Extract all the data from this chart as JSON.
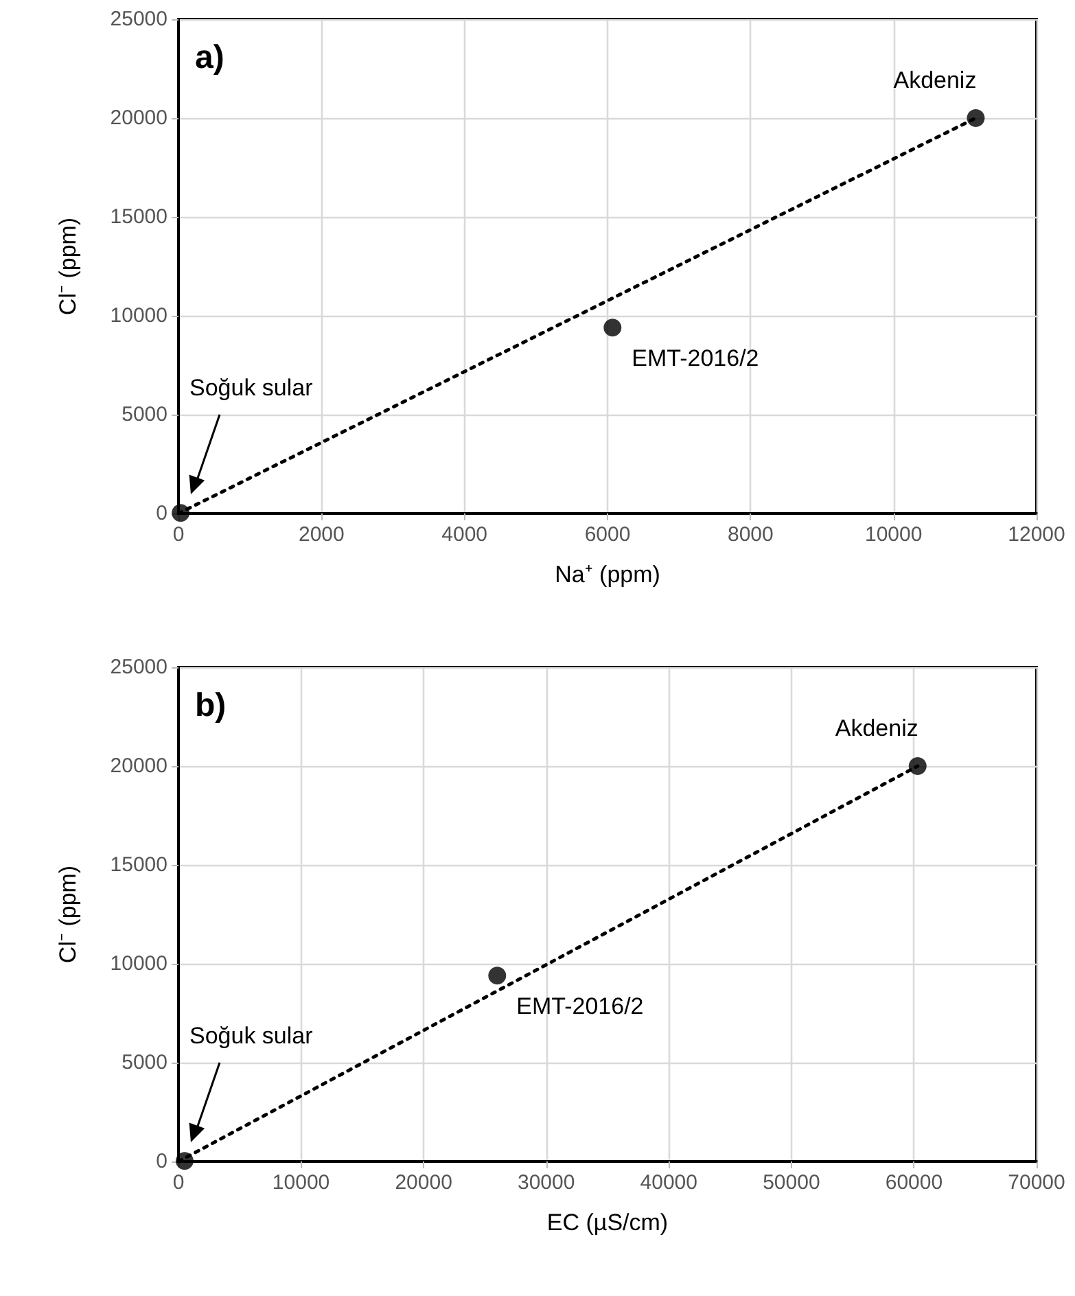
{
  "chart_data": [
    {
      "type": "scatter",
      "xlabel": "Na⁺ (ppm)",
      "ylabel": "Cl⁻ (ppm)",
      "xlim": [
        0,
        12000
      ],
      "xticks": [
        0,
        2000,
        4000,
        6000,
        8000,
        10000,
        12000
      ],
      "ylim": [
        0,
        25000
      ],
      "yticks": [
        0,
        5000,
        10000,
        15000,
        20000,
        25000
      ],
      "grid": true,
      "annotations": [
        "a)",
        {
          "text": "Akdeniz",
          "x": 11150,
          "y": 20000
        },
        {
          "text": "EMT-2016/2",
          "x": 6070,
          "y": 9400
        },
        "Soğuk sular"
      ],
      "series": [
        {
          "color": "#000000",
          "marker": "circle",
          "x": [
            30,
            6070,
            11150
          ],
          "values": [
            30,
            9400,
            20000
          ]
        },
        {
          "type": "line",
          "color": "#000000",
          "marker": "none",
          "line_style": "dotted",
          "x": [
            0,
            11150
          ],
          "values": [
            0,
            20000
          ]
        }
      ]
    },
    {
      "type": "scatter",
      "xlabel": "EC (µS/cm)",
      "ylabel": "Cl⁻ (ppm)",
      "xlim": [
        0,
        70000
      ],
      "xticks": [
        0,
        10000,
        20000,
        30000,
        40000,
        50000,
        60000,
        70000
      ],
      "ylim": [
        0,
        25000
      ],
      "yticks": [
        0,
        5000,
        10000,
        15000,
        20000,
        25000
      ],
      "grid": true,
      "annotations": [
        "b)",
        {
          "text": "Akdeniz",
          "x": 60300,
          "y": 20000
        },
        {
          "text": "EMT-2016/2",
          "x": 26000,
          "y": 9400
        },
        "Soğuk sular"
      ],
      "series": [
        {
          "color": "#000000",
          "marker": "circle",
          "x": [
            500,
            26000,
            60300
          ],
          "values": [
            30,
            9400,
            20000
          ]
        },
        {
          "type": "line",
          "color": "#000000",
          "marker": "none",
          "line_style": "dotted",
          "x": [
            0,
            60300
          ],
          "values": [
            0,
            20000
          ]
        }
      ]
    }
  ]
}
